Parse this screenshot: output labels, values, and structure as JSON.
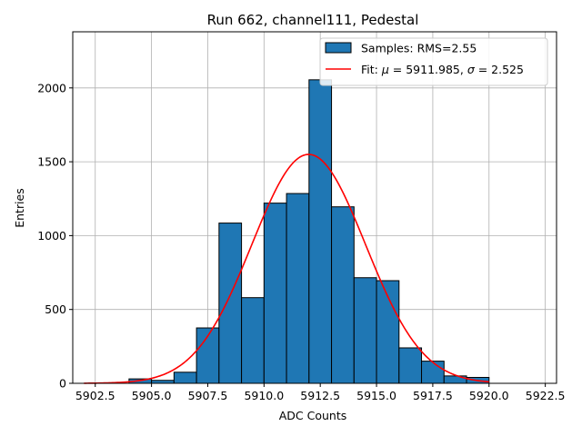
{
  "chart_data": {
    "type": "bar",
    "title": "Run 662, channel111, Pedestal",
    "xlabel": "ADC Counts",
    "ylabel": "Entries",
    "xlim": [
      5901.5,
      5923.0
    ],
    "ylim": [
      0,
      2380
    ],
    "xticks": [
      5902.5,
      5905.0,
      5907.5,
      5910.0,
      5912.5,
      5915.0,
      5917.5,
      5920.0,
      5922.5
    ],
    "xtick_labels": [
      "5902.5",
      "5905.0",
      "5907.5",
      "5910.0",
      "5912.5",
      "5915.0",
      "5917.5",
      "5920.0",
      "5922.5"
    ],
    "yticks": [
      0,
      500,
      1000,
      1500,
      2000
    ],
    "ytick_labels": [
      "0",
      "500",
      "1000",
      "1500",
      "2000"
    ],
    "grid": true,
    "legend_position": "top-right",
    "histogram": {
      "name": "Samples: RMS=2.55",
      "color": "#1f77b4",
      "bin_edges": [
        5904.0,
        5905.0,
        5906.0,
        5907.0,
        5908.0,
        5909.0,
        5910.0,
        5911.0,
        5912.0,
        5913.0,
        5914.0,
        5915.0,
        5916.0,
        5917.0,
        5918.0,
        5919.0,
        5920.0
      ],
      "counts": [
        30,
        20,
        75,
        375,
        1085,
        580,
        1220,
        1285,
        2055,
        1195,
        715,
        695,
        240,
        150,
        50,
        40
      ]
    },
    "fit": {
      "name_prefix": "Fit: ",
      "name_mu": "μ",
      "name_mid": " = 5911.985, ",
      "name_sigma": "σ",
      "name_suffix": " = 2.525",
      "color": "#ff0000",
      "mu": 5911.985,
      "sigma": 2.525,
      "amplitude": 1550,
      "x_range": [
        5902.0,
        5920.0
      ]
    }
  }
}
